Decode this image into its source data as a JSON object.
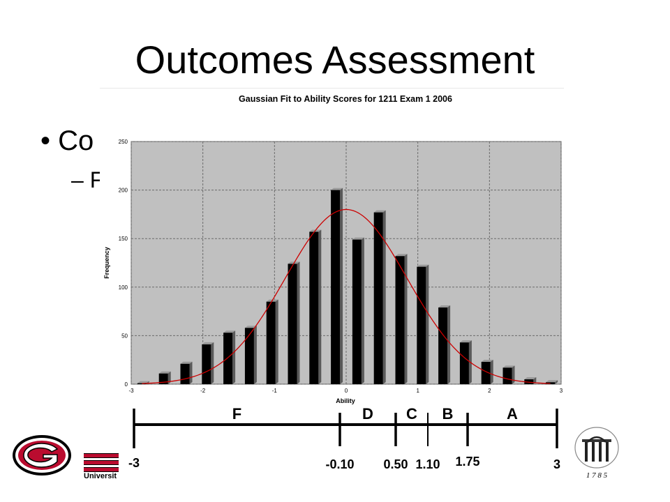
{
  "slide": {
    "title": "Outcomes Assessment",
    "bullet1": "•  Co",
    "bullet2": "– F",
    "university_text": "Universit",
    "arch_year": "1 7 8 5"
  },
  "chart_data": {
    "type": "bar",
    "title": "Gaussian Fit to Ability Scores for 1211 Exam 1 2006",
    "xlabel": "Ability",
    "ylabel": "Frequency",
    "xlim": [
      -3,
      3
    ],
    "ylim": [
      0,
      250
    ],
    "x_ticks": [
      "-3",
      "-2",
      "-1",
      "0",
      "1",
      "2",
      "3"
    ],
    "y_ticks": [
      "0",
      "50",
      "100",
      "150",
      "200",
      "250"
    ],
    "grid": true,
    "bar_color": "#000000",
    "plot_background": "#c0c0c0",
    "series": [
      {
        "x": [
          -2.85,
          -2.55,
          -2.25,
          -1.95,
          -1.65,
          -1.35,
          -1.05,
          -0.75,
          -0.45,
          -0.15,
          0.15,
          0.45,
          0.75,
          1.05,
          1.35,
          1.65,
          1.95,
          2.25,
          2.55,
          2.85
        ],
        "values": [
          1,
          11,
          21,
          41,
          53,
          58,
          85,
          124,
          157,
          200,
          149,
          177,
          132,
          121,
          79,
          43,
          23,
          17,
          5,
          2
        ]
      }
    ],
    "fit_curve": {
      "type": "gaussian",
      "mean": 0.0,
      "sd": 0.85,
      "peak": 180,
      "color": "#cc0000"
    }
  },
  "grade_scale": {
    "grades": [
      "F",
      "D",
      "C",
      "B",
      "A"
    ],
    "cutoffs": [
      "-3",
      "-0.10",
      "0.50",
      "1.10",
      "1.75",
      "3"
    ]
  }
}
